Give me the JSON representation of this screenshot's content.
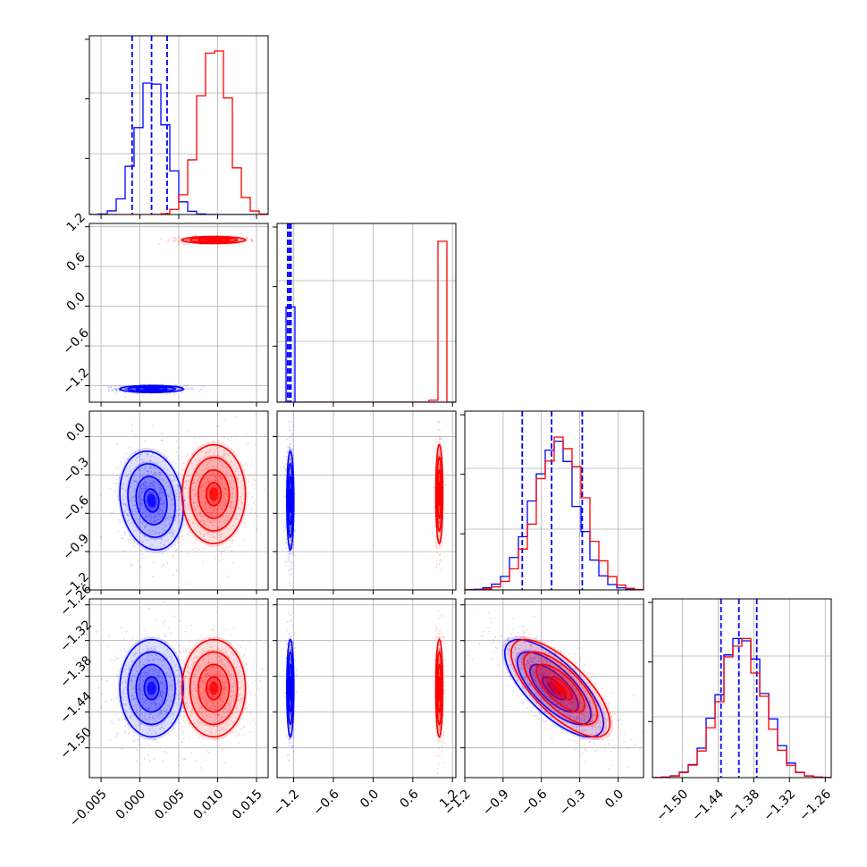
{
  "chart_data": {
    "type": "corner",
    "parameters": [
      {
        "index": 0,
        "range": [
          -0.0065,
          0.0165
        ],
        "ticks": [
          -0.005,
          0.0,
          0.005,
          0.01,
          0.015
        ],
        "tick_labels": [
          "−0.005",
          "0.000",
          "0.005",
          "0.010",
          "0.015"
        ]
      },
      {
        "index": 1,
        "range": [
          -1.45,
          1.25
        ],
        "ticks": [
          -1.2,
          -0.6,
          0.0,
          0.6,
          1.2
        ],
        "tick_labels": [
          "−1.2",
          "−0.6",
          "0.0",
          "0.6",
          "1.2"
        ]
      },
      {
        "index": 2,
        "range": [
          -1.2,
          0.2
        ],
        "ticks": [
          -1.2,
          -0.9,
          -0.6,
          -0.3,
          0.0
        ],
        "tick_labels": [
          "−1.2",
          "−0.9",
          "−0.6",
          "−0.3",
          "0.0"
        ]
      },
      {
        "index": 3,
        "range": [
          -1.55,
          -1.25
        ],
        "ticks": [
          -1.5,
          -1.44,
          -1.38,
          -1.32,
          -1.26
        ],
        "tick_labels": [
          "−1.50",
          "−1.44",
          "−1.38",
          "−1.32",
          "−1.26"
        ]
      }
    ],
    "grid": true,
    "series": [
      {
        "color": "#0000ff",
        "means": [
          0.0015,
          -1.25,
          -0.5,
          -1.4
        ],
        "stds": [
          0.0019,
          0.025,
          0.18,
          0.038
        ],
        "correlations": {
          "0-1": 0.0,
          "0-2": -0.15,
          "0-3": 0.0,
          "1-2": 0.0,
          "1-3": 0.0,
          "2-3": -0.72
        },
        "quantiles": [
          [
            -0.001,
            0.0015,
            0.0035
          ],
          [
            -1.29,
            -1.265,
            -1.24
          ],
          [
            -0.75,
            -0.52,
            -0.28
          ],
          [
            -1.435,
            -1.405,
            -1.375
          ]
        ]
      },
      {
        "color": "#ff0000",
        "means": [
          0.0095,
          1.0,
          -0.45,
          -1.4
        ],
        "stds": [
          0.0019,
          0.025,
          0.18,
          0.038
        ],
        "correlations": {
          "0-1": 0.0,
          "0-2": 0.0,
          "0-3": 0.0,
          "1-2": 0.0,
          "1-3": 0.0,
          "2-3": -0.72
        },
        "quantiles": []
      }
    ],
    "hist_maxima": [
      {
        "blue": 0.735,
        "red": 0.915
      },
      {
        "blue": 0.533,
        "red": 0.9
      },
      {
        "blue": 0.832,
        "red": 0.855
      },
      {
        "blue": 0.778,
        "red": 0.778
      }
    ]
  }
}
